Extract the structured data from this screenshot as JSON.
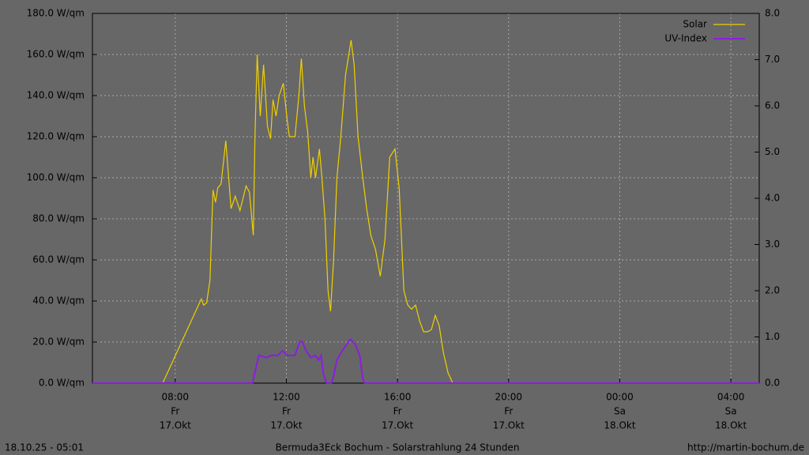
{
  "chart_data": {
    "type": "line",
    "xlim": [
      5.02,
      29.02
    ],
    "xticks": [
      {
        "value": 8,
        "label": "08:00",
        "day": "Fr",
        "date": "17.Okt"
      },
      {
        "value": 12,
        "label": "12:00",
        "day": "Fr",
        "date": "17.Okt"
      },
      {
        "value": 16,
        "label": "16:00",
        "day": "Fr",
        "date": "17.Okt"
      },
      {
        "value": 20,
        "label": "20:00",
        "day": "Fr",
        "date": "17.Okt"
      },
      {
        "value": 24,
        "label": "00:00",
        "day": "Sa",
        "date": "18.Okt"
      },
      {
        "value": 28,
        "label": "04:00",
        "day": "Sa",
        "date": "18.Okt"
      }
    ],
    "ylim": [
      0,
      180
    ],
    "yticks": [
      {
        "value": 0,
        "label": "0.0 W/qm"
      },
      {
        "value": 20,
        "label": "20.0 W/qm"
      },
      {
        "value": 40,
        "label": "40.0 W/qm"
      },
      {
        "value": 60,
        "label": "60.0 W/qm"
      },
      {
        "value": 80,
        "label": "80.0 W/qm"
      },
      {
        "value": 100,
        "label": "100.0 W/qm"
      },
      {
        "value": 120,
        "label": "120.0 W/qm"
      },
      {
        "value": 140,
        "label": "140.0 W/qm"
      },
      {
        "value": 160,
        "label": "160.0 W/qm"
      },
      {
        "value": 180,
        "label": "180.0 W/qm"
      }
    ],
    "y2lim": [
      0,
      8
    ],
    "y2ticks": [
      {
        "value": 0,
        "label": "0.0"
      },
      {
        "value": 1,
        "label": "1.0"
      },
      {
        "value": 2,
        "label": "2.0"
      },
      {
        "value": 3,
        "label": "3.0"
      },
      {
        "value": 4,
        "label": "4.0"
      },
      {
        "value": 5,
        "label": "5.0"
      },
      {
        "value": 6,
        "label": "6.0"
      },
      {
        "value": 7,
        "label": "7.0"
      },
      {
        "value": 8,
        "label": "8.0"
      }
    ],
    "grid": true,
    "legend": "top-right",
    "series": [
      {
        "name": "Solar",
        "color": "#f0d000",
        "x": [
          5.02,
          7.55,
          8.94,
          9.02,
          9.13,
          9.25,
          9.36,
          9.45,
          9.53,
          9.65,
          9.82,
          10.01,
          10.16,
          10.33,
          10.55,
          10.67,
          10.81,
          10.87,
          10.95,
          11.06,
          11.18,
          11.32,
          11.43,
          11.52,
          11.63,
          11.74,
          11.89,
          12.03,
          12.11,
          12.31,
          12.45,
          12.54,
          12.65,
          12.77,
          12.88,
          12.96,
          13.05,
          13.19,
          13.28,
          13.39,
          13.5,
          13.59,
          13.7,
          13.82,
          13.96,
          14.13,
          14.33,
          14.44,
          14.58,
          14.75,
          14.89,
          15.04,
          15.21,
          15.38,
          15.55,
          15.72,
          15.91,
          16.06,
          16.23,
          16.37,
          16.51,
          16.65,
          16.8,
          16.94,
          17.08,
          17.22,
          17.36,
          17.5,
          17.65,
          17.82,
          17.99,
          29.02
        ],
        "values": [
          0,
          0,
          41,
          38,
          39,
          50,
          94,
          88,
          95,
          97,
          118,
          85,
          91,
          84,
          96,
          93,
          72,
          120,
          160,
          130,
          155,
          125,
          119,
          138,
          130,
          140,
          146,
          128,
          120,
          120,
          140,
          158,
          135,
          122,
          100,
          110,
          100,
          114,
          100,
          80,
          45,
          35,
          60,
          100,
          120,
          150,
          167,
          155,
          120,
          100,
          85,
          72,
          65,
          52,
          70,
          110,
          114,
          95,
          45,
          38,
          36,
          38,
          30,
          25,
          25,
          26,
          33,
          28,
          15,
          5,
          0,
          0
        ]
      },
      {
        "name": "UV-Index",
        "color": "#8a1ee0",
        "axis": "y2",
        "x": [
          5.02,
          10.78,
          11.01,
          11.29,
          11.46,
          11.69,
          11.86,
          12.03,
          12.31,
          12.48,
          12.57,
          12.71,
          12.88,
          13.05,
          13.16,
          13.25,
          13.33,
          13.45,
          13.62,
          13.7,
          13.82,
          14.01,
          14.3,
          14.47,
          14.64,
          14.75,
          14.81,
          29.02
        ],
        "values": [
          0,
          0,
          0.6,
          0.55,
          0.6,
          0.6,
          0.7,
          0.6,
          0.6,
          0.9,
          0.9,
          0.7,
          0.55,
          0.6,
          0.5,
          0.6,
          0.2,
          0,
          0,
          0.15,
          0.5,
          0.7,
          0.95,
          0.85,
          0.6,
          0.1,
          0,
          0
        ]
      }
    ]
  },
  "footer": {
    "left": "18.10.25 - 05:01",
    "center": "Bermuda3Eck Bochum - Solarstrahlung 24 Stunden",
    "right": "http://martin-bochum.de"
  }
}
